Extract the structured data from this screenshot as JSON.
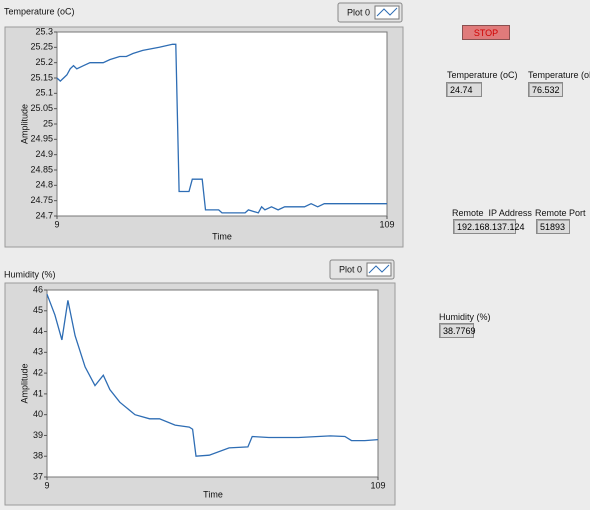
{
  "chart_data": [
    {
      "type": "line",
      "title": "Temperature (oC)",
      "xlabel": "Time",
      "ylabel": "Amplitude",
      "x": [
        9,
        10,
        11,
        12,
        13,
        14,
        15,
        17,
        19,
        23,
        25,
        28,
        30,
        32,
        35,
        40,
        44,
        45,
        46,
        49,
        50,
        53,
        54,
        58,
        59,
        66,
        67,
        70,
        71,
        72,
        74,
        76,
        78,
        80,
        84,
        86,
        88,
        90,
        95,
        100,
        109
      ],
      "series": [
        {
          "name": "Plot 0",
          "color": "#2e6db4",
          "values": [
            25.15,
            25.14,
            25.15,
            25.16,
            25.18,
            25.19,
            25.18,
            25.19,
            25.2,
            25.2,
            25.21,
            25.22,
            25.22,
            25.23,
            25.24,
            25.25,
            25.26,
            25.26,
            24.78,
            24.78,
            24.82,
            24.82,
            24.72,
            24.72,
            24.71,
            24.71,
            24.72,
            24.71,
            24.73,
            24.72,
            24.73,
            24.72,
            24.73,
            24.73,
            24.73,
            24.74,
            24.73,
            24.74,
            24.74,
            24.74,
            24.74
          ]
        }
      ],
      "xlim": [
        9,
        109
      ],
      "ylim": [
        24.7,
        25.3
      ],
      "xticks": [
        9,
        109
      ],
      "yticks": [
        24.7,
        24.75,
        24.8,
        24.85,
        24.9,
        24.95,
        25,
        25.05,
        25.1,
        25.15,
        25.2,
        25.25,
        25.3
      ]
    },
    {
      "type": "line",
      "title": "Humidity (%)",
      "xlabel": "Time",
      "ylabel": "Amplitude",
      "x": [
        9,
        11.4,
        13.5,
        15.3,
        17.5,
        20.5,
        23.5,
        26,
        28,
        31,
        35.6,
        40,
        43,
        47.7,
        52,
        53,
        54,
        58,
        64,
        69.7,
        71,
        76,
        85,
        94.6,
        99,
        101,
        105,
        109
      ],
      "series": [
        {
          "name": "Plot 0",
          "color": "#2e6db4",
          "values": [
            45.8,
            44.8,
            43.6,
            45.5,
            43.8,
            42.3,
            41.4,
            41.9,
            41.2,
            40.6,
            40,
            39.8,
            39.8,
            39.5,
            39.4,
            39.3,
            38,
            38.05,
            38.4,
            38.45,
            38.95,
            38.9,
            38.9,
            38.98,
            38.95,
            38.75,
            38.75,
            38.8
          ]
        }
      ],
      "xlim": [
        9,
        109
      ],
      "ylim": [
        37,
        46
      ],
      "xticks": [
        9,
        109
      ],
      "yticks": [
        37,
        38,
        39,
        40,
        41,
        42,
        43,
        44,
        45,
        46
      ]
    }
  ],
  "controls": {
    "stop": "STOP",
    "indicators": [
      {
        "label": "Temperature (oC)",
        "value": "24.74"
      },
      {
        "label": "Temperature (oF)",
        "value": "76.532"
      },
      {
        "label": "Remote  IP Address",
        "value": "192.168.137.124"
      },
      {
        "label": "Remote Port",
        "value": "51893"
      },
      {
        "label": "Humidity (%)",
        "value": "38.7769"
      }
    ]
  }
}
